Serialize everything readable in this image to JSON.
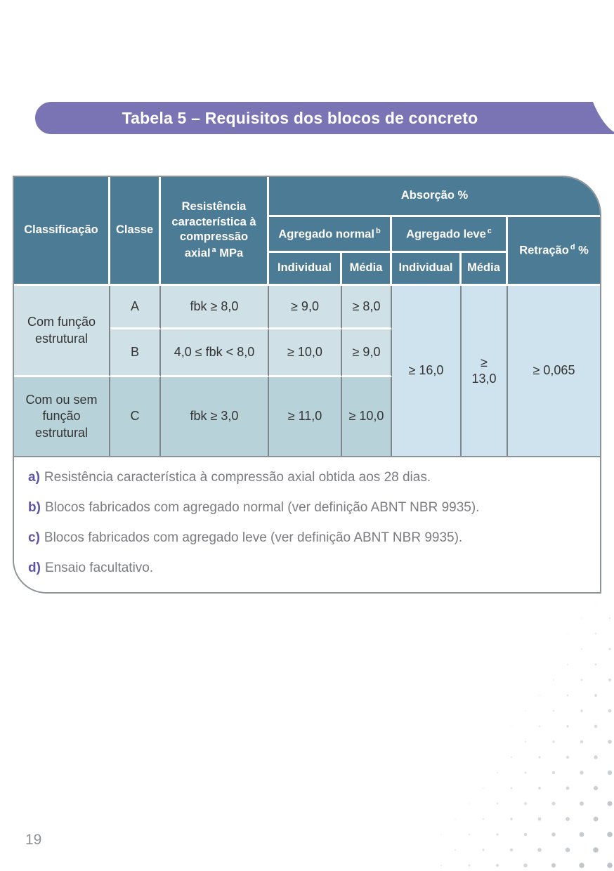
{
  "banner": {
    "title": "Tabela 5 – Requisitos dos blocos de concreto"
  },
  "table": {
    "header": {
      "classificacao": "Classificação",
      "classe": "Classe",
      "resistencia": {
        "text": "Resistência característica à compressão axial",
        "sup": "a",
        "suffix": " MPa"
      },
      "absorcao": "Absorção %",
      "agregado_normal": {
        "text": "Agregado normal",
        "sup": "b"
      },
      "agregado_leve": {
        "text": "Agregado leve",
        "sup": "c"
      },
      "individual_normal": "Individual",
      "media_normal": "Média",
      "individual_leve": "Individual",
      "media_leve": "Média",
      "retracao": {
        "text": "Retração",
        "sup": "d",
        "suffix": " %"
      }
    },
    "rows": {
      "com_funcao": "Com função estrutural",
      "com_ou_sem": "Com ou sem função estrutural",
      "a": {
        "classe": "A",
        "fbk": "fbk ≥ 8,0",
        "ind_normal": "≥ 9,0",
        "med_normal": "≥ 8,0"
      },
      "b": {
        "classe": "B",
        "fbk": "4,0 ≤ fbk < 8,0",
        "ind_normal": "≥ 10,0",
        "med_normal": "≥ 9,0"
      },
      "c": {
        "classe": "C",
        "fbk": "fbk ≥ 3,0",
        "ind_normal": "≥ 11,0",
        "med_normal": "≥ 10,0"
      },
      "merged": {
        "ind_leve": "≥ 16,0",
        "med_leve": "≥ 13,0",
        "retracao": "≥ 0,065"
      }
    }
  },
  "footnotes": [
    {
      "label": "a)",
      "text": "Resistência característica à compressão axial obtida aos 28 dias."
    },
    {
      "label": "b)",
      "text": "Blocos fabricados com agregado normal (ver definição ABNT NBR 9935)."
    },
    {
      "label": "c)",
      "text": "Blocos fabricados com agregado leve (ver definição ABNT NBR 9935)."
    },
    {
      "label": "d)",
      "text": "Ensaio facultativo."
    }
  ],
  "page": {
    "number": "19"
  },
  "theme": {
    "banner_bg": "#7b74b4",
    "banner_text": "#ffffff",
    "header_bg": "#4c7b96",
    "header_text": "#ffffff",
    "row_light_bg": "#cfe0e6",
    "row_dark_bg": "#b8d2d9",
    "merged_cell_bg": "#cfe3ee",
    "grid_line": "#7e868c",
    "frame_border": "#8d9399",
    "body_text": "#333333",
    "footnote_label": "#5d55a3",
    "footnote_text": "#7b7c80",
    "page_number": "#8e9194",
    "dot_color": "#b6bcc2"
  }
}
